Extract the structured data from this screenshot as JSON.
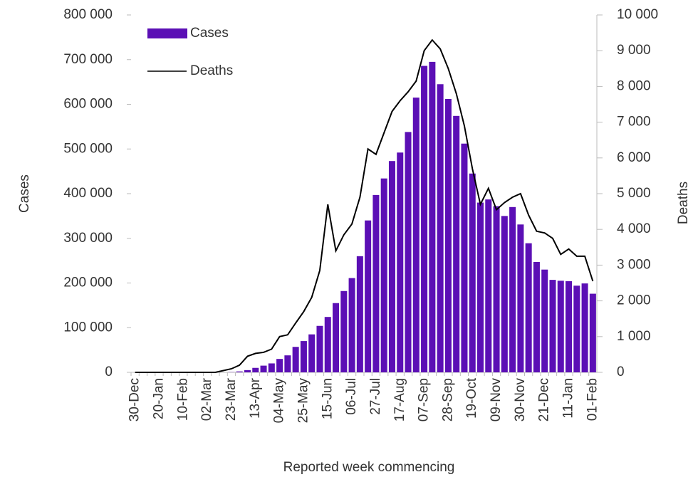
{
  "chart_data": {
    "type": "bar_line",
    "categories": [
      "30-Dec",
      null,
      null,
      "20-Jan",
      null,
      null,
      "10-Feb",
      null,
      null,
      "02-Mar",
      null,
      null,
      "23-Mar",
      null,
      null,
      "13-Apr",
      null,
      null,
      "04-May",
      null,
      null,
      "25-May",
      null,
      null,
      "15-Jun",
      null,
      null,
      "06-Jul",
      null,
      null,
      "27-Jul",
      null,
      null,
      "17-Aug",
      null,
      null,
      "07-Sep",
      null,
      null,
      "28-Sep",
      null,
      null,
      "19-Oct",
      null,
      null,
      "09-Nov",
      null,
      null,
      "30-Nov",
      null,
      null,
      "21-Dec",
      null,
      null,
      "11-Jan",
      null,
      null,
      "01-Feb"
    ],
    "series": [
      {
        "name": "Cases",
        "type": "bar",
        "color": "#5b0fb5",
        "values": [
          0,
          0,
          0,
          0,
          0,
          0,
          0,
          0,
          0,
          0,
          0,
          0,
          500,
          2000,
          5000,
          10000,
          15000,
          20000,
          30000,
          38000,
          57000,
          70000,
          85000,
          104000,
          124000,
          155000,
          182000,
          211000,
          260000,
          340000,
          397000,
          434000,
          473000,
          492000,
          538000,
          615000,
          686000,
          695000,
          645000,
          612000,
          574000,
          512000,
          445000,
          380000,
          387000,
          372000,
          350000,
          370000,
          331000,
          289000,
          247000,
          230000,
          207000,
          205000,
          204000,
          194000,
          199000,
          176000
        ]
      },
      {
        "name": "Deaths",
        "type": "line",
        "axis": "y2",
        "color": "#000000",
        "values": [
          0,
          0,
          0,
          0,
          0,
          0,
          0,
          0,
          0,
          0,
          0,
          50,
          100,
          200,
          450,
          530,
          560,
          650,
          1000,
          1050,
          1380,
          1700,
          2100,
          2850,
          4700,
          3400,
          3850,
          4150,
          4900,
          6250,
          6100,
          6700,
          7300,
          7600,
          7850,
          8150,
          9000,
          9300,
          9050,
          8500,
          7800,
          6900,
          5700,
          4700,
          5150,
          4550,
          4750,
          4900,
          5000,
          4400,
          3950,
          3900,
          3750,
          3300,
          3450,
          3250,
          3250,
          2550
        ]
      }
    ],
    "x_label": "Reported week commencing",
    "y_label": "Cases",
    "y2_label": "Deaths",
    "ylim": [
      0,
      800000
    ],
    "yticks": [
      0,
      {
        "value": 100000,
        "label": "100 000"
      },
      {
        "value": 200000,
        "label": "200 000"
      },
      {
        "value": 300000,
        "label": "300 000"
      },
      {
        "value": 400000,
        "label": "400 000"
      },
      {
        "value": 500000,
        "label": "500 000"
      },
      {
        "value": 600000,
        "label": "600 000"
      },
      {
        "value": 700000,
        "label": "700 000"
      },
      {
        "value": 800000,
        "label": "800 000"
      }
    ],
    "y2lim": [
      0,
      10000
    ],
    "y2ticks": [
      0,
      {
        "value": 1000,
        "label": "1 000"
      },
      {
        "value": 2000,
        "label": "2 000"
      },
      {
        "value": 3000,
        "label": "3 000"
      },
      {
        "value": 4000,
        "label": "4 000"
      },
      {
        "value": 5000,
        "label": "5 000"
      },
      {
        "value": 6000,
        "label": "6 000"
      },
      {
        "value": 7000,
        "label": "7 000"
      },
      {
        "value": 8000,
        "label": "8 000"
      },
      {
        "value": 9000,
        "label": "9 000"
      },
      {
        "value": 10000,
        "label": "10 000"
      }
    ],
    "legend": "top-left"
  }
}
